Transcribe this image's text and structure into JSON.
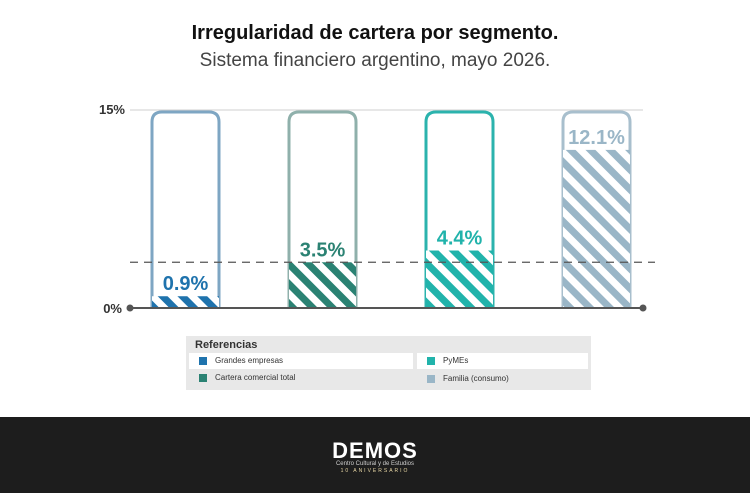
{
  "title": "Irregularidad de cartera por segmento.",
  "subtitle": "Sistema financiero argentino, mayo 2026.",
  "chart_data": {
    "type": "bar",
    "categories": [
      "Grandes empresas",
      "Cartera comercial total",
      "PyMEs",
      "Familia (consumo)"
    ],
    "values": [
      0.9,
      3.5,
      4.4,
      12.1
    ],
    "value_labels": [
      "0.9%",
      "3.5%",
      "4.4%",
      "12.1%"
    ],
    "colors": [
      "#1f73ad",
      "#2b8273",
      "#21b3ab",
      "#9ab6c7"
    ],
    "outline_colors": [
      "#7ea6c3",
      "#8fb0ab",
      "#2bb3ad",
      "#a8bfcd"
    ],
    "ylim": [
      0,
      15
    ],
    "yticks": [
      "0%",
      "15%"
    ],
    "reference_line": 3.5,
    "grid": false
  },
  "legend": {
    "title": "Referencias",
    "items": [
      {
        "label": "Grandes empresas",
        "color": "#1f73ad"
      },
      {
        "label": "PyMEs",
        "color": "#21b3ab"
      },
      {
        "label": "Cartera comercial total",
        "color": "#2b8273"
      },
      {
        "label": "Familia (consumo)",
        "color": "#9ab6c7"
      }
    ]
  },
  "footer": {
    "logo": "DEMOS",
    "tagline": "Centro Cultural y de Estudios",
    "anniversary": "10 ANIVERSARIO"
  }
}
